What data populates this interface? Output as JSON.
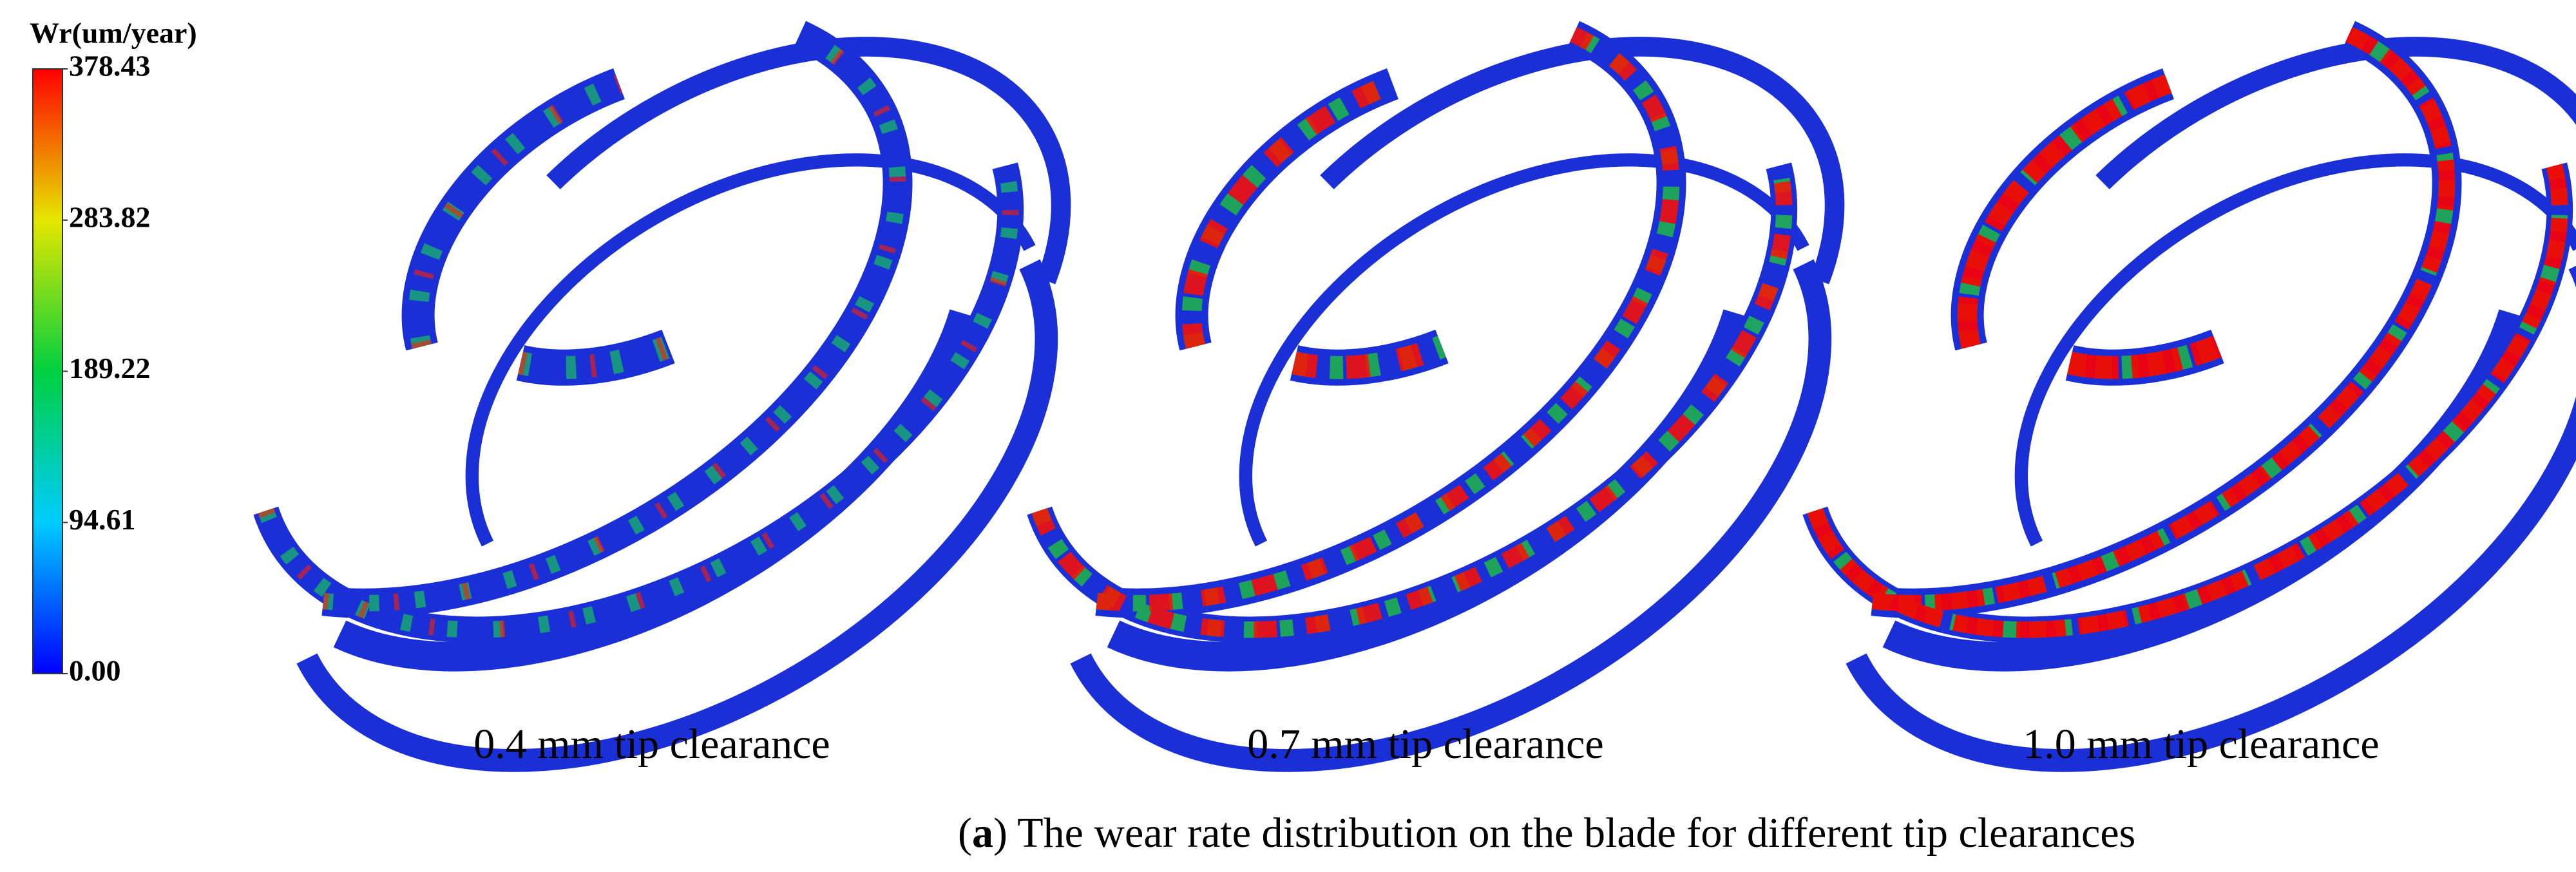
{
  "colorbar": {
    "title": "Wr(um/year)",
    "lim": [
      0,
      378.43
    ],
    "ticks": [
      {
        "value": 0,
        "label": "0.00"
      },
      94.61,
      189.22,
      283.82,
      378.43
    ]
  },
  "panels": [
    {
      "label": "0.4 mm tip clearance"
    },
    {
      "label": "0.7 mm tip clearance"
    },
    {
      "label": "1.0 mm tip clearance"
    }
  ],
  "caption": {
    "parts": [
      "(",
      "a",
      ") The wear rate distribution on the blade for different tip clearances"
    ]
  }
}
